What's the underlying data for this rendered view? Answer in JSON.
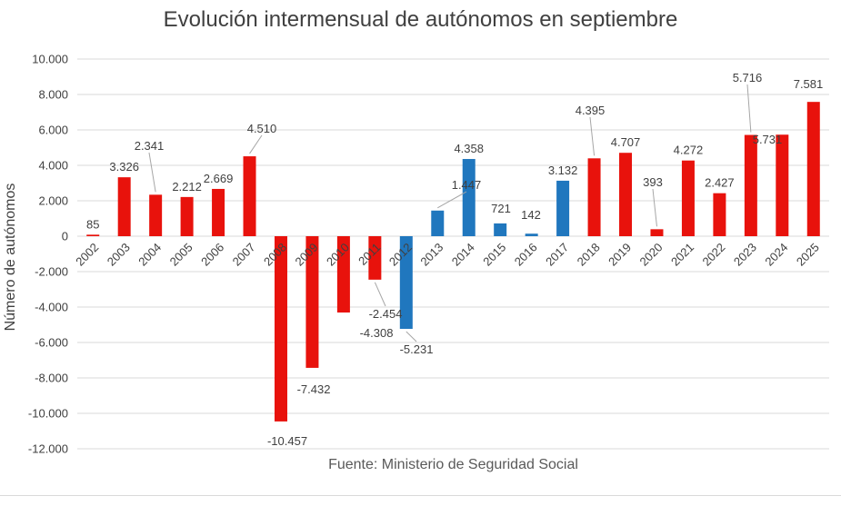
{
  "chart_data": {
    "type": "bar",
    "title": "Evolución intermensual de autónomos en septiembre",
    "xlabel": "",
    "ylabel": "Número de autónomos",
    "source": "Fuente: Ministerio de Seguridad Social",
    "ylim": [
      -12000,
      10000
    ],
    "grid": true,
    "legend": false,
    "palette": {
      "red": "#e8120c",
      "blue": "#2077be"
    },
    "categories": [
      "2002",
      "2003",
      "2004",
      "2005",
      "2006",
      "2007",
      "2008",
      "2009",
      "2010",
      "2011",
      "2012",
      "2013",
      "2014",
      "2015",
      "2016",
      "2017",
      "2018",
      "2019",
      "2020",
      "2021",
      "2022",
      "2023",
      "2024",
      "2025"
    ],
    "values": [
      85,
      3326,
      2341,
      2212,
      2669,
      4510,
      -10457,
      -7432,
      -4308,
      -2454,
      -5231,
      1447,
      4358,
      721,
      142,
      3132,
      4395,
      4707,
      393,
      4272,
      2427,
      5716,
      5731,
      7581
    ],
    "value_labels": [
      "85",
      "3.326",
      "2.341",
      "2.212",
      "2.669",
      "4.510",
      "-10.457",
      "-7.432",
      "-4.308",
      "-2.454",
      "-5.231",
      "1.447",
      "4.358",
      "721",
      "142",
      "3.132",
      "4.395",
      "4.707",
      "393",
      "4.272",
      "2.427",
      "5.716",
      "5.731",
      "7.581"
    ],
    "bar_colors": [
      "red",
      "red",
      "red",
      "red",
      "red",
      "red",
      "red",
      "red",
      "red",
      "red",
      "blue",
      "blue",
      "blue",
      "blue",
      "blue",
      "blue",
      "red",
      "red",
      "red",
      "red",
      "red",
      "red",
      "red",
      "red"
    ],
    "y_ticks": [
      {
        "value": 10000,
        "label": "10.000"
      },
      {
        "value": 8000,
        "label": "8.000"
      },
      {
        "value": 6000,
        "label": "6.000"
      },
      {
        "value": 4000,
        "label": "4.000"
      },
      {
        "value": 2000,
        "label": "2.000"
      },
      {
        "value": 0,
        "label": "0"
      },
      {
        "value": -2000,
        "label": "-2.000"
      },
      {
        "value": -4000,
        "label": "-4.000"
      },
      {
        "value": -6000,
        "label": "-6.000"
      },
      {
        "value": -8000,
        "label": "-8.000"
      },
      {
        "value": -10000,
        "label": "-10.000"
      },
      {
        "value": -12000,
        "label": "-12.000"
      }
    ]
  }
}
